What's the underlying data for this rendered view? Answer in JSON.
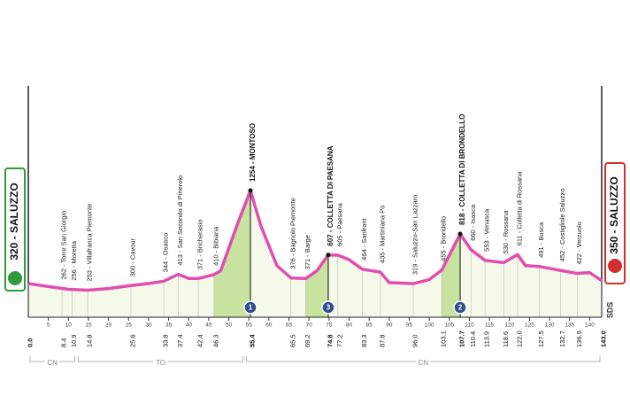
{
  "chart_data": {
    "type": "area",
    "start": "320 - SALUZZO",
    "finish": "350 - SALUZZO",
    "brand": "SDS",
    "line_color": "#e04fb0",
    "fill_color": "#f5f9ea",
    "climb_color": "#c8e29f",
    "x": [
      0,
      5,
      10,
      14.8,
      20,
      25.6,
      30,
      33.8,
      37.4,
      40,
      42.4,
      46.3,
      48,
      52,
      55.4,
      58,
      62,
      65.5,
      69.2,
      72,
      74.8,
      77.2,
      80,
      83.3,
      87.8,
      90,
      96,
      100,
      103.1,
      107.7,
      110.4,
      113.9,
      118.6,
      122,
      124,
      127.5,
      132.7,
      136.9,
      140,
      143
    ],
    "values": [
      320,
      290,
      262,
      253,
      270,
      300,
      320,
      344,
      413,
      371,
      371,
      410,
      450,
      900,
      1254,
      900,
      500,
      376,
      371,
      450,
      607,
      605,
      560,
      464,
      435,
      330,
      319,
      360,
      455,
      818,
      660,
      553,
      530,
      611,
      500,
      491,
      452,
      422,
      430,
      350
    ],
    "xlim": [
      0,
      143
    ],
    "ylim": [
      0,
      1400
    ],
    "xticks": [
      5,
      10,
      15,
      20,
      25,
      30,
      35,
      40,
      45,
      50,
      55,
      60,
      65,
      70,
      75,
      80,
      85,
      90,
      95,
      100,
      105,
      110,
      115,
      120,
      125,
      130,
      135,
      140
    ],
    "km_labels": [
      {
        "value": 0,
        "label": "0.0"
      },
      8.4,
      10.9,
      14.8,
      25.6,
      33.8,
      37.4,
      42.4,
      46.3,
      55.4,
      65.5,
      69.2,
      74.8,
      77.2,
      83.3,
      87.8,
      {
        "value": 96,
        "label": "96.0"
      },
      103.1,
      107.7,
      110.4,
      113.9,
      118.6,
      {
        "value": 122,
        "label": "122.0"
      },
      127.5,
      132.7,
      136.9,
      {
        "value": 143,
        "label": "143.0"
      }
    ],
    "waypoints": [
      {
        "km": 8.4,
        "label": "262 - Torre San Giorgio"
      },
      {
        "km": 10.9,
        "label": "256 - Moretta"
      },
      {
        "km": 14.8,
        "label": "253 - Villafranca Piemonte"
      },
      {
        "km": 25.6,
        "label": "300 - Cavour"
      },
      {
        "km": 33.8,
        "label": "344 - Osasco"
      },
      {
        "km": 37.4,
        "label": "413 - San Secondo di Pinerolo"
      },
      {
        "km": 42.4,
        "label": "371 - Bricherasio"
      },
      {
        "km": 46.3,
        "label": "410 - Bibiana"
      },
      {
        "km": 65.5,
        "label": "376 - Bagnolo Piemonte"
      },
      {
        "km": 69.2,
        "label": "371 - Barge"
      },
      {
        "km": 77.2,
        "label": "605 - Paesana"
      },
      {
        "km": 83.3,
        "label": "464 - Sanfront"
      },
      {
        "km": 87.8,
        "label": "435 - Martiniana Po"
      },
      {
        "km": 96,
        "label": "319 - Saluzzo-San Lazzaro"
      },
      {
        "km": 103.1,
        "label": "455 - Brondello"
      },
      {
        "km": 110.4,
        "label": "660 - Isasca"
      },
      {
        "km": 113.9,
        "label": "553 - Venasca"
      },
      {
        "km": 118.6,
        "label": "530 - Rossana"
      },
      {
        "km": 122,
        "label": "611 - Colletta di Rossana"
      },
      {
        "km": 127.5,
        "label": "491 - Busca"
      },
      {
        "km": 132.7,
        "label": "452 - Costigliole Saluzzo"
      },
      {
        "km": 136.9,
        "label": "422 - Verzuolo"
      }
    ],
    "climbs": [
      {
        "km": 55.4,
        "from": 46.3,
        "label": "1254 - MONTOSO",
        "category": "1"
      },
      {
        "km": 74.8,
        "from": 69.2,
        "label": "607 - COLLETTA DI PAESANA",
        "category": "3"
      },
      {
        "km": 107.7,
        "from": 103.1,
        "label": "818 - COLLETTA DI BRONDELLO",
        "category": "2"
      }
    ],
    "provinces": [
      {
        "name": "CN",
        "range": [
          0,
          12
        ]
      },
      {
        "name": "TO",
        "range": [
          12,
          54
        ]
      },
      {
        "name": "CN",
        "range": [
          54,
          143
        ]
      }
    ]
  }
}
